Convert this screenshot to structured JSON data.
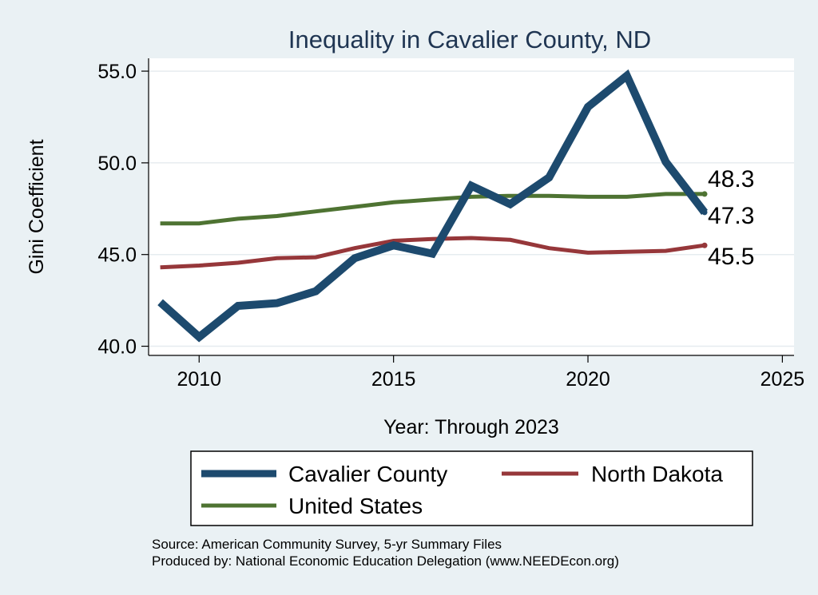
{
  "chart_data": {
    "type": "line",
    "title": "Inequality in Cavalier County, ND",
    "xlabel": "Year: Through 2023",
    "ylabel": "Gini Coefficient",
    "xlim": [
      2008.7,
      2025.3
    ],
    "ylim": [
      39.5,
      55.7
    ],
    "xticks": [
      2010,
      2015,
      2020,
      2025
    ],
    "yticks": [
      40,
      45,
      50,
      55
    ],
    "xtick_labels": [
      "2010",
      "2015",
      "2020",
      "2025"
    ],
    "ytick_labels": [
      "40.0",
      "45.0",
      "50.0",
      "55.0"
    ],
    "grid": true,
    "x": [
      2009,
      2010,
      2011,
      2012,
      2013,
      2014,
      2015,
      2016,
      2017,
      2018,
      2019,
      2020,
      2021,
      2022,
      2023
    ],
    "series": [
      {
        "name": "Cavalier County",
        "color": "#1d4a6e",
        "values": [
          42.4,
          40.5,
          42.2,
          42.35,
          43.0,
          44.8,
          45.5,
          45.05,
          48.75,
          47.75,
          49.2,
          53.05,
          54.75,
          50.05,
          47.3
        ],
        "end_label": "47.3"
      },
      {
        "name": "North Dakota",
        "color": "#96373a",
        "values": [
          44.3,
          44.4,
          44.55,
          44.8,
          44.85,
          45.35,
          45.75,
          45.85,
          45.9,
          45.8,
          45.35,
          45.1,
          45.15,
          45.2,
          45.5
        ],
        "end_label": "45.5"
      },
      {
        "name": "United States",
        "color": "#4e7332",
        "values": [
          46.7,
          46.7,
          46.95,
          47.1,
          47.35,
          47.6,
          47.85,
          48.0,
          48.15,
          48.2,
          48.2,
          48.15,
          48.15,
          48.3,
          48.3
        ],
        "end_label": "48.3"
      }
    ],
    "legend": {
      "entries": [
        "Cavalier County",
        "North Dakota",
        "United States"
      ],
      "placement": "bottom"
    },
    "source_lines": [
      "Source: American Community Survey, 5-yr Summary Files",
      "Produced by: National Economic Education Delegation (www.NEEDEcon.org)"
    ]
  }
}
